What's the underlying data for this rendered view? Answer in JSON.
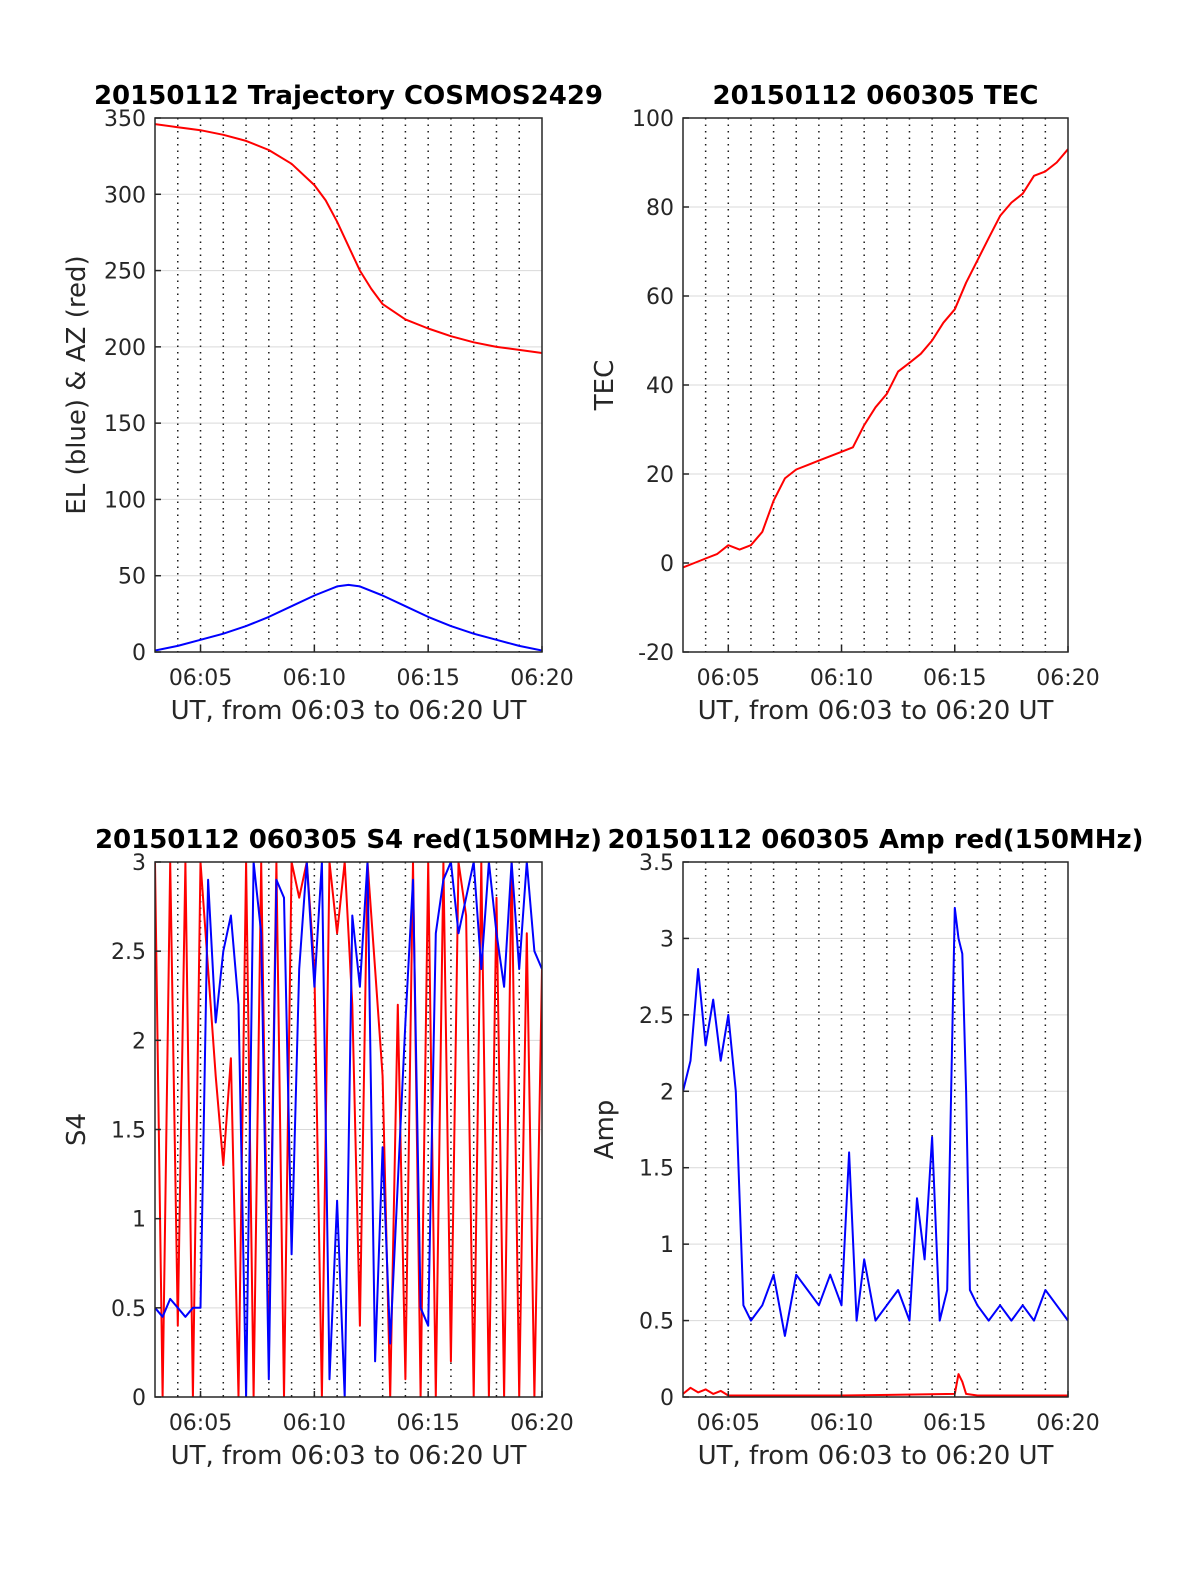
{
  "chart_data": [
    {
      "type": "line",
      "title": "20150112 Trajectory COSMOS2429",
      "xlabel": "UT, from 06:03 to 06:20 UT",
      "ylabel": "EL (blue) & AZ (red)",
      "xlim": [
        "06:03",
        "06:20"
      ],
      "ylim": [
        0,
        350
      ],
      "xticks": [
        "06:05",
        "06:10",
        "06:15",
        "06:20"
      ],
      "yticks": [
        "0",
        "50",
        "100",
        "150",
        "200",
        "250",
        "300",
        "350"
      ],
      "grid": true,
      "series": [
        {
          "color": "#ff0000",
          "x": [
            "06:03",
            "06:04",
            "06:05",
            "06:06",
            "06:07",
            "06:08",
            "06:09",
            "06:10",
            "06:10:30",
            "06:11",
            "06:11:30",
            "06:12",
            "06:12:30",
            "06:13",
            "06:14",
            "06:15",
            "06:16",
            "06:17",
            "06:18",
            "06:19",
            "06:20"
          ],
          "values": [
            346,
            344,
            342,
            339,
            335,
            329,
            320,
            306,
            296,
            282,
            266,
            250,
            238,
            228,
            218,
            212,
            207,
            203,
            200,
            198,
            196
          ]
        },
        {
          "color": "#0000ff",
          "x": [
            "06:03",
            "06:04",
            "06:05",
            "06:06",
            "06:07",
            "06:08",
            "06:09",
            "06:10",
            "06:11",
            "06:11:30",
            "06:12",
            "06:13",
            "06:14",
            "06:15",
            "06:16",
            "06:17",
            "06:18",
            "06:19",
            "06:20"
          ],
          "values": [
            1,
            4,
            8,
            12,
            17,
            23,
            30,
            37,
            43,
            44,
            43,
            37,
            30,
            23,
            17,
            12,
            8,
            4,
            1
          ]
        }
      ]
    },
    {
      "type": "line",
      "title": "20150112 060305 TEC",
      "xlabel": "UT, from 06:03 to 06:20 UT",
      "ylabel": "TEC",
      "xlim": [
        "06:03",
        "06:20"
      ],
      "ylim": [
        -20,
        100
      ],
      "xticks": [
        "06:05",
        "06:10",
        "06:15",
        "06:20"
      ],
      "yticks": [
        "-20",
        "0",
        "20",
        "40",
        "60",
        "80",
        "100"
      ],
      "grid": true,
      "series": [
        {
          "color": "#ff0000",
          "x": [
            "06:03",
            "06:03:30",
            "06:04",
            "06:04:30",
            "06:05",
            "06:05:30",
            "06:06",
            "06:06:30",
            "06:07",
            "06:07:30",
            "06:08",
            "06:08:30",
            "06:09",
            "06:09:30",
            "06:10",
            "06:10:30",
            "06:11",
            "06:11:30",
            "06:12",
            "06:12:30",
            "06:13",
            "06:13:30",
            "06:14",
            "06:14:30",
            "06:15",
            "06:15:30",
            "06:16",
            "06:16:30",
            "06:17",
            "06:17:30",
            "06:18",
            "06:18:30",
            "06:19",
            "06:19:30",
            "06:20"
          ],
          "values": [
            -1,
            0,
            1,
            2,
            4,
            3,
            4,
            7,
            14,
            19,
            21,
            22,
            23,
            24,
            25,
            26,
            31,
            35,
            38,
            43,
            45,
            47,
            50,
            54,
            57,
            63,
            68,
            73,
            78,
            81,
            83,
            87,
            88,
            90,
            93
          ]
        }
      ]
    },
    {
      "type": "line",
      "title": "20150112 060305 S4 red(150MHz)",
      "xlabel": "UT, from 06:03 to 06:20 UT",
      "ylabel": "S4",
      "xlim": [
        "06:03",
        "06:20"
      ],
      "ylim": [
        0,
        3
      ],
      "xticks": [
        "06:05",
        "06:10",
        "06:15",
        "06:20"
      ],
      "yticks": [
        "0",
        "0.5",
        "1",
        "1.5",
        "2",
        "2.5",
        "3"
      ],
      "grid": true,
      "series": [
        {
          "color": "#ff0000",
          "x": [
            "06:03",
            "06:03:20",
            "06:03:40",
            "06:04",
            "06:04:20",
            "06:04:40",
            "06:05",
            "06:05:20",
            "06:05:40",
            "06:06",
            "06:06:20",
            "06:06:40",
            "06:07",
            "06:07:20",
            "06:07:40",
            "06:08",
            "06:08:20",
            "06:08:40",
            "06:09",
            "06:09:20",
            "06:09:40",
            "06:10",
            "06:10:20",
            "06:10:40",
            "06:11",
            "06:11:20",
            "06:11:40",
            "06:12",
            "06:12:20",
            "06:12:40",
            "06:13",
            "06:13:20",
            "06:13:40",
            "06:14",
            "06:14:20",
            "06:14:40",
            "06:15",
            "06:15:20",
            "06:15:40",
            "06:16",
            "06:16:20",
            "06:16:40",
            "06:17",
            "06:17:20",
            "06:17:40",
            "06:18",
            "06:18:20",
            "06:18:40",
            "06:19",
            "06:19:20",
            "06:19:40",
            "06:20"
          ],
          "values": [
            3,
            0,
            3,
            0.4,
            3,
            0,
            3,
            2.4,
            1.8,
            1.3,
            1.9,
            0,
            3,
            0,
            3,
            0.2,
            3,
            0,
            3,
            2.8,
            3,
            2.4,
            0,
            3,
            2.6,
            3,
            2.2,
            0.4,
            3,
            2.4,
            1.8,
            0,
            2.2,
            0.1,
            3,
            0,
            3,
            0,
            3,
            0.2,
            3,
            2.7,
            0,
            3,
            0,
            2.8,
            0,
            3,
            0,
            2.6,
            0,
            2.4
          ]
        },
        {
          "color": "#0000ff",
          "x": [
            "06:03",
            "06:03:20",
            "06:03:40",
            "06:04",
            "06:04:20",
            "06:04:40",
            "06:05",
            "06:05:20",
            "06:05:40",
            "06:06",
            "06:06:20",
            "06:06:40",
            "06:07",
            "06:07:20",
            "06:07:40",
            "06:08",
            "06:08:20",
            "06:08:40",
            "06:09",
            "06:09:20",
            "06:09:40",
            "06:10",
            "06:10:20",
            "06:10:40",
            "06:11",
            "06:11:20",
            "06:11:40",
            "06:12",
            "06:12:20",
            "06:12:40",
            "06:13",
            "06:13:20",
            "06:13:40",
            "06:14",
            "06:14:20",
            "06:14:40",
            "06:15",
            "06:15:20",
            "06:15:40",
            "06:16",
            "06:16:20",
            "06:16:40",
            "06:17",
            "06:17:20",
            "06:17:40",
            "06:18",
            "06:18:20",
            "06:18:40",
            "06:19",
            "06:19:20",
            "06:19:40",
            "06:20"
          ],
          "values": [
            0.5,
            0.45,
            0.55,
            0.5,
            0.45,
            0.5,
            0.5,
            2.9,
            2.1,
            2.5,
            2.7,
            2.2,
            0,
            3,
            2.6,
            0.1,
            2.9,
            2.8,
            0.8,
            2.4,
            3,
            2.3,
            3,
            0.1,
            1.1,
            0,
            2.7,
            2.3,
            3,
            0.2,
            1.4,
            0.3,
            1.2,
            2.1,
            2.9,
            0.5,
            0.4,
            2.6,
            2.9,
            3,
            2.6,
            2.8,
            3,
            2.4,
            3,
            2.6,
            2.3,
            3,
            2.4,
            3,
            2.5,
            2.4
          ]
        }
      ]
    },
    {
      "type": "line",
      "title": "20150112 060305 Amp red(150MHz)",
      "xlabel": "UT, from 06:03 to 06:20 UT",
      "ylabel": "Amp",
      "xlim": [
        "06:03",
        "06:20"
      ],
      "ylim": [
        0,
        3.5
      ],
      "xticks": [
        "06:05",
        "06:10",
        "06:15",
        "06:20"
      ],
      "yticks": [
        "0",
        "0.5",
        "1",
        "1.5",
        "2",
        "2.5",
        "3",
        "3.5"
      ],
      "grid": true,
      "series": [
        {
          "color": "#ff0000",
          "x": [
            "06:03",
            "06:03:20",
            "06:03:40",
            "06:04",
            "06:04:20",
            "06:04:40",
            "06:05",
            "06:06",
            "06:10",
            "06:15",
            "06:15:10",
            "06:15:20",
            "06:15:30",
            "06:16",
            "06:20"
          ],
          "values": [
            0.02,
            0.06,
            0.03,
            0.05,
            0.02,
            0.04,
            0.01,
            0.01,
            0.01,
            0.02,
            0.15,
            0.1,
            0.02,
            0.01,
            0.01
          ]
        },
        {
          "color": "#0000ff",
          "x": [
            "06:03",
            "06:03:20",
            "06:03:40",
            "06:04",
            "06:04:20",
            "06:04:40",
            "06:05",
            "06:05:20",
            "06:05:40",
            "06:06",
            "06:06:30",
            "06:07",
            "06:07:30",
            "06:08",
            "06:08:30",
            "06:09",
            "06:09:30",
            "06:10",
            "06:10:20",
            "06:10:40",
            "06:11",
            "06:11:30",
            "06:12",
            "06:12:30",
            "06:13",
            "06:13:20",
            "06:13:40",
            "06:14",
            "06:14:20",
            "06:14:40",
            "06:15",
            "06:15:10",
            "06:15:20",
            "06:15:30",
            "06:15:40",
            "06:16",
            "06:16:30",
            "06:17",
            "06:17:30",
            "06:18",
            "06:18:30",
            "06:19",
            "06:19:30",
            "06:20"
          ],
          "values": [
            2.0,
            2.2,
            2.8,
            2.3,
            2.6,
            2.2,
            2.5,
            2.0,
            0.6,
            0.5,
            0.6,
            0.8,
            0.4,
            0.8,
            0.7,
            0.6,
            0.8,
            0.6,
            1.6,
            0.5,
            0.9,
            0.5,
            0.6,
            0.7,
            0.5,
            1.3,
            0.9,
            1.7,
            0.5,
            0.7,
            3.2,
            3.0,
            2.9,
            2.0,
            0.7,
            0.6,
            0.5,
            0.6,
            0.5,
            0.6,
            0.5,
            0.7,
            0.6,
            0.5
          ]
        }
      ]
    }
  ]
}
